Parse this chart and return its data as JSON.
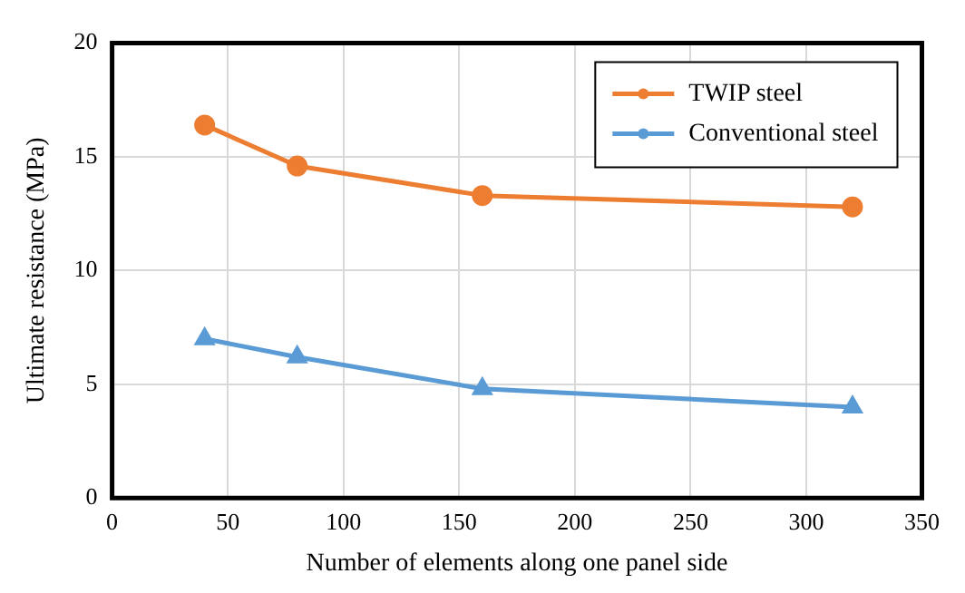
{
  "chart_data": {
    "type": "line",
    "xlabel": "Number of elements along one panel side",
    "ylabel": "Ultimate resistance (MPa)",
    "x": [
      40,
      80,
      160,
      320
    ],
    "series": [
      {
        "name": "TWIP steel",
        "color": "#ed7d31",
        "values": [
          16.4,
          14.6,
          13.3,
          12.8
        ],
        "marker": "circle"
      },
      {
        "name": "Conventional steel",
        "color": "#5b9bd5",
        "values": [
          7.0,
          6.2,
          4.8,
          4.0
        ],
        "marker": "triangle"
      }
    ],
    "xlim": [
      0,
      350
    ],
    "xticks": [
      0,
      50,
      100,
      150,
      200,
      250,
      300,
      350
    ],
    "ylim": [
      0,
      20
    ],
    "yticks": [
      0,
      5,
      10,
      15,
      20
    ],
    "grid": true,
    "legend": "top right",
    "line_style": "solid"
  }
}
